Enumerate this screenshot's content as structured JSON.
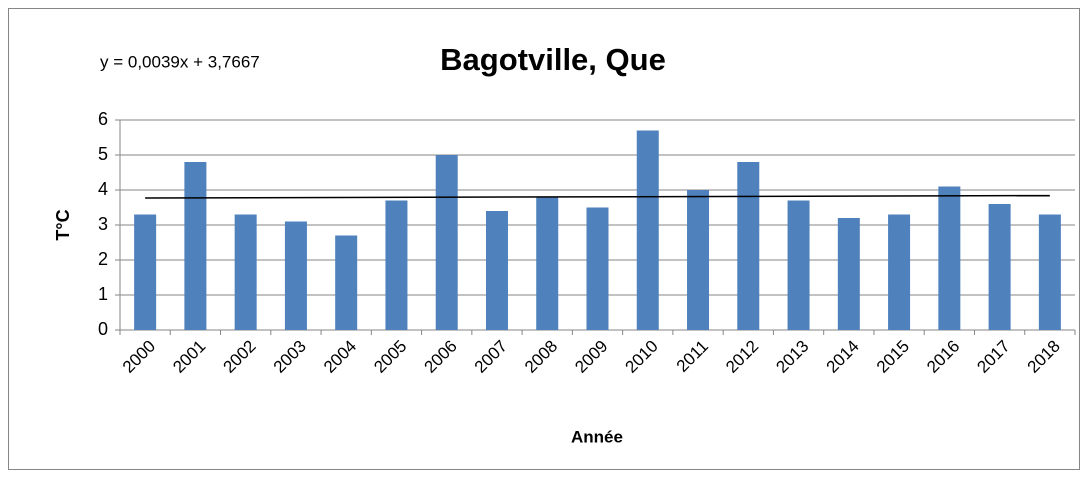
{
  "chart_data": {
    "type": "bar",
    "title": "Bagotville, Que",
    "x_label": "Année",
    "y_label": "T°C",
    "categories": [
      "2000",
      "2001",
      "2002",
      "2003",
      "2004",
      "2005",
      "2006",
      "2007",
      "2008",
      "2009",
      "2010",
      "2011",
      "2012",
      "2013",
      "2014",
      "2015",
      "2016",
      "2017",
      "2018"
    ],
    "values": [
      3.3,
      4.8,
      3.3,
      3.1,
      2.7,
      3.7,
      5.0,
      3.4,
      3.8,
      3.5,
      5.7,
      4.0,
      4.8,
      3.7,
      3.2,
      3.3,
      4.1,
      3.6,
      3.3
    ],
    "color": "#4f81bd",
    "ylim": [
      0,
      6
    ],
    "yticks": [
      0,
      1,
      2,
      3,
      4,
      5,
      6
    ],
    "grid": true,
    "trendline": {
      "slope": 0.0039,
      "intercept": 3.7667,
      "label": "y = 0,0039x + 3,7667",
      "color": "#000000"
    }
  }
}
